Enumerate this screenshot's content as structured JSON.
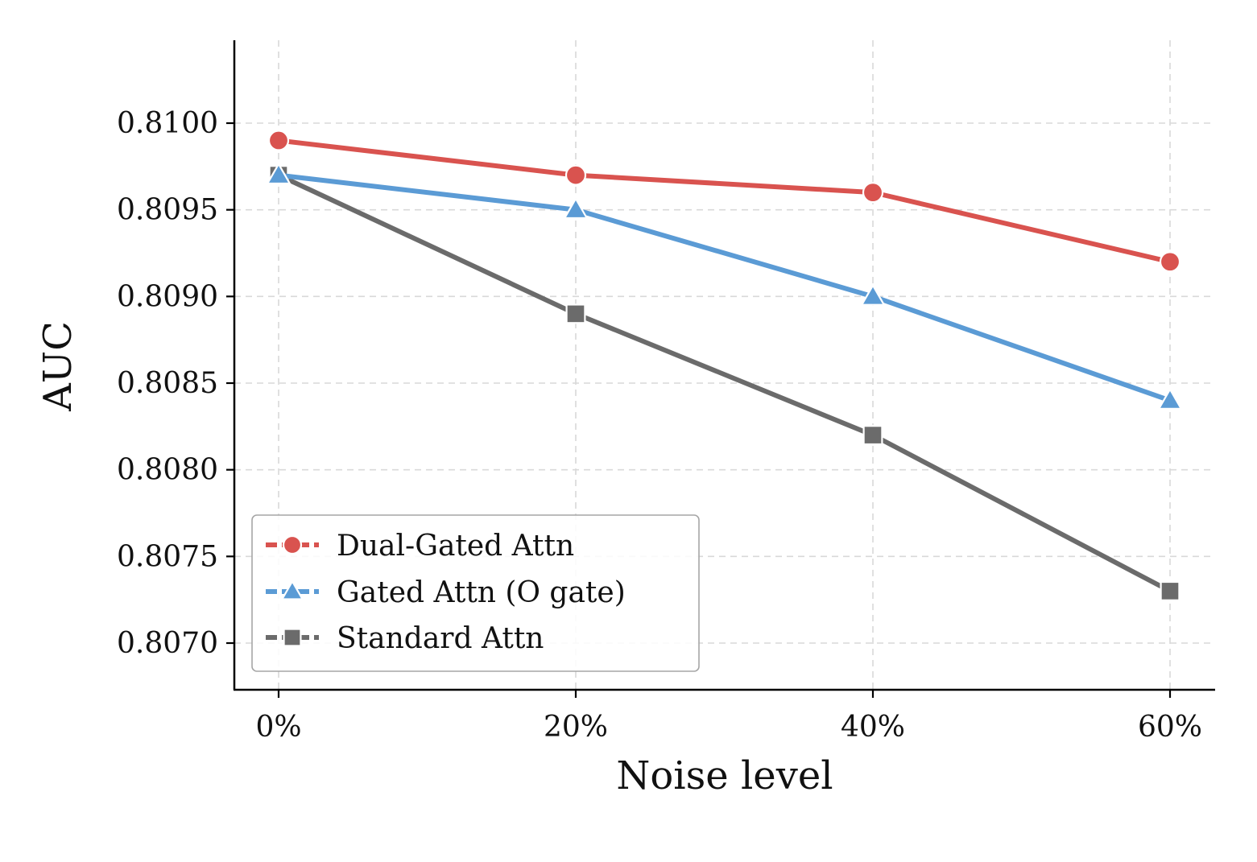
{
  "chart_data": {
    "type": "line",
    "title": "",
    "xlabel": "Noise level",
    "ylabel": "AUC",
    "categories": [
      "0%",
      "20%",
      "40%",
      "60%"
    ],
    "y_ticks": [
      "0.8070",
      "0.8075",
      "0.8080",
      "0.8085",
      "0.8090",
      "0.8095",
      "0.8100"
    ],
    "y_tick_values": [
      0.807,
      0.8075,
      0.808,
      0.8085,
      0.809,
      0.8095,
      0.81
    ],
    "ylim": [
      0.80675,
      0.81145
    ],
    "grid": true,
    "legend_position": "lower-left",
    "series": [
      {
        "name": "Dual-Gated Attn",
        "values": [
          0.8099,
          0.8097,
          0.8096,
          0.8092
        ],
        "color": "#d9534f",
        "marker": "circle"
      },
      {
        "name": "Gated Attn (O gate)",
        "values": [
          0.8097,
          0.8095,
          0.809,
          0.8084
        ],
        "color": "#5b9bd5",
        "marker": "triangle"
      },
      {
        "name": "Standard Attn",
        "values": [
          0.8097,
          0.8089,
          0.8082,
          0.8073
        ],
        "color": "#6b6b6b",
        "marker": "square"
      }
    ]
  }
}
